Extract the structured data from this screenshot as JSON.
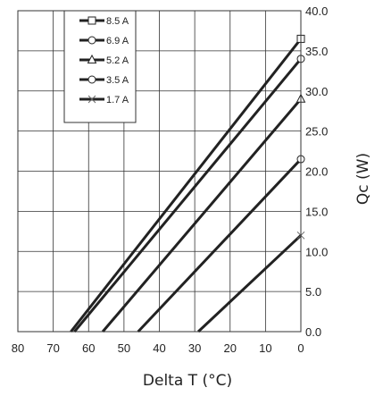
{
  "chart_data": {
    "type": "line",
    "title": "",
    "xlabel": "Delta T (°C)",
    "ylabel": "Qc (W)",
    "x_ticks": [
      "80",
      "70",
      "60",
      "50",
      "40",
      "30",
      "20",
      "10",
      "0"
    ],
    "y_ticks": [
      "0.0",
      "5.0",
      "10.0",
      "15.0",
      "20.0",
      "25.0",
      "30.0",
      "35.0",
      "40.0"
    ],
    "xlim": [
      80,
      0
    ],
    "ylim": [
      0,
      40
    ],
    "x_reversed": true,
    "y_axis_side": "right",
    "grid": true,
    "legend_position": "top-left",
    "series": [
      {
        "name": "8.5 A",
        "marker": "square",
        "x": [
          65,
          0
        ],
        "y": [
          0,
          36.5
        ]
      },
      {
        "name": "6.9 A",
        "marker": "circle",
        "x": [
          64,
          0
        ],
        "y": [
          0,
          34.0
        ]
      },
      {
        "name": "5.2 A",
        "marker": "triangle",
        "x": [
          56,
          0
        ],
        "y": [
          0,
          29.0
        ]
      },
      {
        "name": "3.5 A",
        "marker": "circle",
        "x": [
          46,
          0
        ],
        "y": [
          0,
          21.5
        ]
      },
      {
        "name": "1.7 A",
        "marker": "x",
        "x": [
          29,
          0
        ],
        "y": [
          0,
          12.0
        ]
      }
    ],
    "colors": {
      "line": "#222222",
      "grid": "#333333",
      "marker_fill": "#ffffff"
    }
  }
}
